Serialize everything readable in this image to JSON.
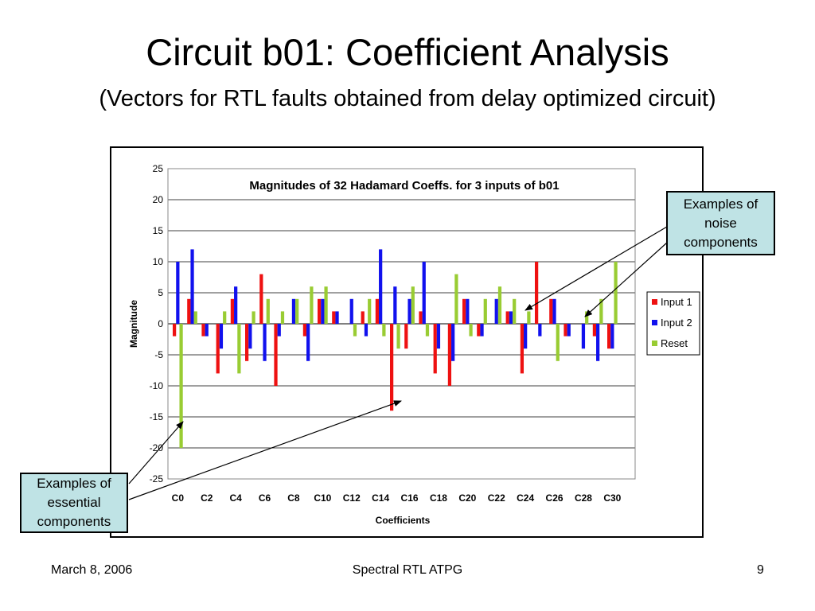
{
  "slide": {
    "title": "Circuit b01: Coefficient Analysis",
    "subtitle": "(Vectors for RTL faults obtained from delay optimized circuit)",
    "footer_left": "March 8, 2006",
    "footer_center": "Spectral RTL ATPG",
    "footer_right": "9"
  },
  "callouts": {
    "noise": "Examples of\nnoise\ncomponents",
    "essential": "Examples of\nessential\ncomponents"
  },
  "chart_data": {
    "type": "bar",
    "title": "Magnitudes of 32 Hadamard Coeffs. for 3 inputs of b01",
    "xlabel": "Coefficients",
    "ylabel": "Magnitude",
    "ylim": [
      -25,
      25
    ],
    "yticks": [
      25,
      20,
      15,
      10,
      5,
      0,
      -5,
      -10,
      -15,
      -20,
      -25
    ],
    "grid": true,
    "legend_position": "right",
    "categories": [
      "C0",
      "C1",
      "C2",
      "C3",
      "C4",
      "C5",
      "C6",
      "C7",
      "C8",
      "C9",
      "C10",
      "C11",
      "C12",
      "C13",
      "C14",
      "C15",
      "C16",
      "C17",
      "C18",
      "C19",
      "C20",
      "C21",
      "C22",
      "C23",
      "C24",
      "C25",
      "C26",
      "C27",
      "C28",
      "C29",
      "C30",
      "C31"
    ],
    "tick_labels_shown": [
      "C0",
      "C2",
      "C4",
      "C6",
      "C8",
      "C10",
      "C12",
      "C14",
      "C16",
      "C18",
      "C20",
      "C22",
      "C24",
      "C26",
      "C28",
      "C30"
    ],
    "series": [
      {
        "name": "Input 1",
        "color": "#ee1111",
        "values": [
          -2,
          4,
          -2,
          -8,
          4,
          -6,
          8,
          -10,
          0,
          -2,
          4,
          2,
          0,
          2,
          4,
          -14,
          -4,
          2,
          -8,
          -10,
          4,
          -2,
          0,
          2,
          -8,
          10,
          4,
          -2,
          0,
          -2,
          -4,
          0
        ]
      },
      {
        "name": "Input 2",
        "color": "#1111ee",
        "values": [
          10,
          12,
          -2,
          -4,
          6,
          -4,
          -6,
          -2,
          4,
          -6,
          4,
          2,
          4,
          -2,
          12,
          6,
          4,
          10,
          -4,
          -6,
          4,
          -2,
          4,
          2,
          -4,
          -2,
          4,
          -2,
          -4,
          -6,
          -4,
          0
        ]
      },
      {
        "name": "Reset",
        "color": "#99cc33",
        "values": [
          -20,
          2,
          0,
          2,
          -8,
          2,
          4,
          2,
          4,
          6,
          6,
          0,
          -2,
          4,
          -2,
          -4,
          6,
          -2,
          0,
          8,
          -2,
          4,
          6,
          4,
          2,
          0,
          -6,
          0,
          2,
          4,
          10,
          0
        ]
      }
    ]
  }
}
